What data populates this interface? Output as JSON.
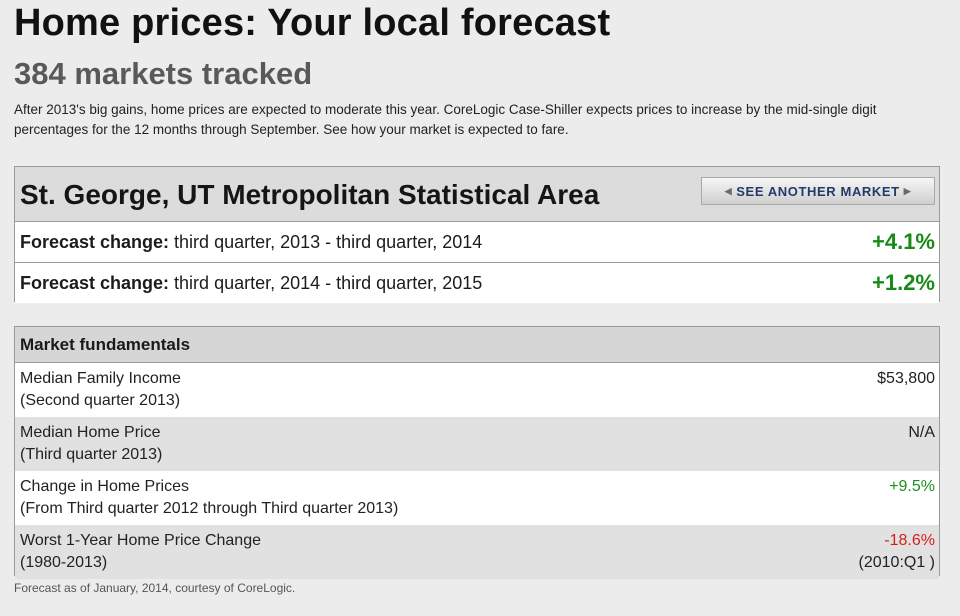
{
  "header": {
    "title": "Home prices: Your local forecast",
    "subtitle": "384 markets tracked",
    "intro": "After 2013's big gains, home prices are expected to moderate this year. CoreLogic Case-Shiller expects prices to increase by the mid-single digit percentages for the 12 months through September. See how your market is expected to fare."
  },
  "market": {
    "name": "St. George, UT Metropolitan Statistical Area",
    "see_another_label": "SEE ANOTHER MARKET",
    "forecasts": [
      {
        "label_bold": "Forecast change:",
        "label_rest": " third quarter, 2013 - third quarter, 2014",
        "value": "+4.1%"
      },
      {
        "label_bold": "Forecast change:",
        "label_rest": " third quarter, 2014 - third quarter, 2015",
        "value": "+1.2%"
      }
    ]
  },
  "fundamentals": {
    "title": "Market fundamentals",
    "rows": [
      {
        "label": "Median Family Income",
        "sublabel": "(Second quarter 2013)",
        "value": "$53,800",
        "subvalue": ""
      },
      {
        "label": "Median Home Price",
        "sublabel": "(Third quarter 2013)",
        "value": "N/A",
        "subvalue": ""
      },
      {
        "label": "Change in Home Prices",
        "sublabel": "(From Third quarter 2012 through Third quarter 2013)",
        "value": "+9.5%",
        "subvalue": ""
      },
      {
        "label": "Worst 1-Year Home Price Change",
        "sublabel": "(1980-2013)",
        "value": "-18.6%",
        "subvalue": "(2010:Q1 )"
      }
    ]
  },
  "footnote": "Forecast as of January, 2014, courtesy of CoreLogic.",
  "colors": {
    "positive": "#178a17",
    "negative": "#d41e1e",
    "header_bg": "#dcdcdc",
    "row_alt_bg": "#e1e1e1"
  }
}
